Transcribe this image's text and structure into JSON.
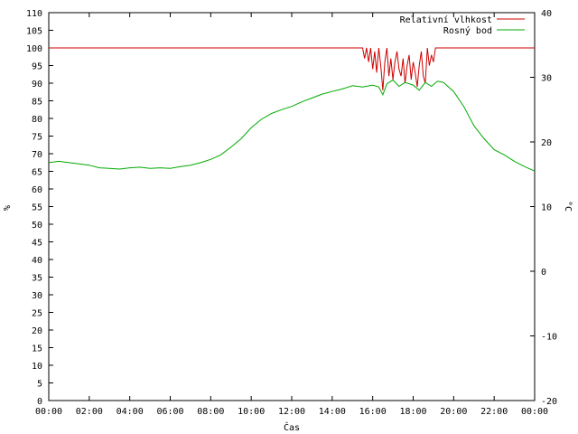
{
  "chart_data": {
    "type": "line",
    "xlabel": "Čas",
    "ylabel_left": "%",
    "ylabel_right": "°C",
    "x_ticks": [
      "00:00",
      "02:00",
      "04:00",
      "06:00",
      "08:00",
      "10:00",
      "12:00",
      "14:00",
      "16:00",
      "18:00",
      "20:00",
      "22:00",
      "00:00"
    ],
    "x_range_hours": [
      0,
      24
    ],
    "ylim_left": [
      0,
      110
    ],
    "yticks_left": [
      0,
      5,
      10,
      15,
      20,
      25,
      30,
      35,
      40,
      45,
      50,
      55,
      60,
      65,
      70,
      75,
      80,
      85,
      90,
      95,
      100,
      105,
      110
    ],
    "ylim_right": [
      -20,
      40
    ],
    "yticks_right": [
      -20,
      -10,
      0,
      10,
      20,
      30,
      40
    ],
    "legend_position": "top-right",
    "series": [
      {
        "name": "Relativní vlhkost",
        "axis": "left",
        "color": "#cc0000",
        "points": [
          [
            0,
            100
          ],
          [
            15.5,
            100
          ],
          [
            15.6,
            97
          ],
          [
            15.7,
            100
          ],
          [
            15.8,
            96
          ],
          [
            15.9,
            100
          ],
          [
            16.0,
            94
          ],
          [
            16.1,
            99
          ],
          [
            16.2,
            93
          ],
          [
            16.3,
            100
          ],
          [
            16.4,
            95
          ],
          [
            16.5,
            88
          ],
          [
            16.6,
            96
          ],
          [
            16.7,
            100
          ],
          [
            16.8,
            92
          ],
          [
            16.9,
            97
          ],
          [
            17.0,
            91
          ],
          [
            17.1,
            96
          ],
          [
            17.2,
            99
          ],
          [
            17.3,
            94
          ],
          [
            17.4,
            92
          ],
          [
            17.5,
            97
          ],
          [
            17.6,
            90
          ],
          [
            17.7,
            95
          ],
          [
            17.8,
            98
          ],
          [
            17.9,
            91
          ],
          [
            18.0,
            96
          ],
          [
            18.1,
            93
          ],
          [
            18.2,
            89
          ],
          [
            18.3,
            95
          ],
          [
            18.4,
            99
          ],
          [
            18.5,
            92
          ],
          [
            18.6,
            90
          ],
          [
            18.7,
            100
          ],
          [
            18.8,
            95
          ],
          [
            18.9,
            98
          ],
          [
            19.0,
            96
          ],
          [
            19.1,
            100
          ],
          [
            19.2,
            100
          ],
          [
            24,
            100
          ]
        ]
      },
      {
        "name": "Rosný bod",
        "axis": "right",
        "color": "#00aa00",
        "points": [
          [
            0,
            16.8
          ],
          [
            0.5,
            17.0
          ],
          [
            1.0,
            16.8
          ],
          [
            1.5,
            16.6
          ],
          [
            2.0,
            16.4
          ],
          [
            2.5,
            16.0
          ],
          [
            3.0,
            15.9
          ],
          [
            3.5,
            15.8
          ],
          [
            4.0,
            16.0
          ],
          [
            4.5,
            16.1
          ],
          [
            5.0,
            15.9
          ],
          [
            5.5,
            16.0
          ],
          [
            6.0,
            15.9
          ],
          [
            6.5,
            16.2
          ],
          [
            7.0,
            16.4
          ],
          [
            7.5,
            16.8
          ],
          [
            8.0,
            17.3
          ],
          [
            8.5,
            18.0
          ],
          [
            9.0,
            19.2
          ],
          [
            9.5,
            20.5
          ],
          [
            10.0,
            22.2
          ],
          [
            10.5,
            23.5
          ],
          [
            11.0,
            24.4
          ],
          [
            11.5,
            25.0
          ],
          [
            12.0,
            25.5
          ],
          [
            12.5,
            26.2
          ],
          [
            13.0,
            26.8
          ],
          [
            13.5,
            27.4
          ],
          [
            14.0,
            27.8
          ],
          [
            14.5,
            28.2
          ],
          [
            15.0,
            28.7
          ],
          [
            15.5,
            28.5
          ],
          [
            16.0,
            28.8
          ],
          [
            16.3,
            28.5
          ],
          [
            16.5,
            27.3
          ],
          [
            16.7,
            29.0
          ],
          [
            17.0,
            29.6
          ],
          [
            17.3,
            28.6
          ],
          [
            17.6,
            29.2
          ],
          [
            18.0,
            28.8
          ],
          [
            18.3,
            28.0
          ],
          [
            18.6,
            29.2
          ],
          [
            18.9,
            28.6
          ],
          [
            19.2,
            29.4
          ],
          [
            19.5,
            29.2
          ],
          [
            20.0,
            27.8
          ],
          [
            20.5,
            25.5
          ],
          [
            21.0,
            22.5
          ],
          [
            21.5,
            20.5
          ],
          [
            22.0,
            18.8
          ],
          [
            22.5,
            18.0
          ],
          [
            23.0,
            17.0
          ],
          [
            23.5,
            16.2
          ],
          [
            24,
            15.5
          ]
        ]
      }
    ]
  }
}
